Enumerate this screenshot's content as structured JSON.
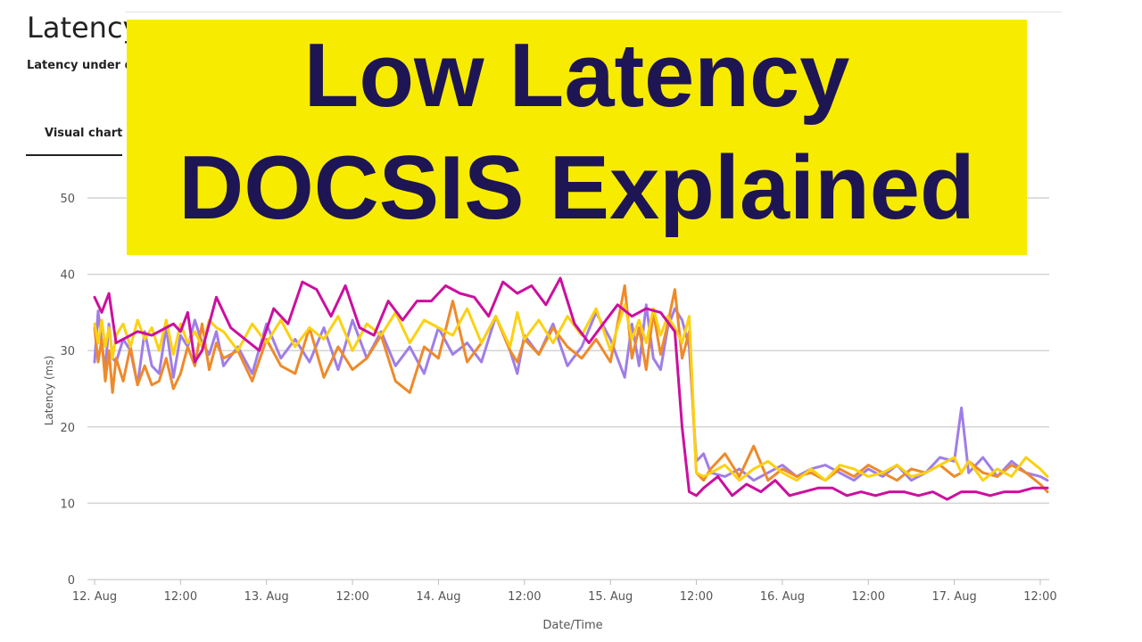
{
  "page": {
    "title": "Latency",
    "subtitle": "Latency under d",
    "tab_label": "Visual chart"
  },
  "banner": {
    "line1": "Low Latency",
    "line2": "DOCSIS Explained",
    "background": "#f7ec00",
    "text_color": "#1d1554"
  },
  "chart_data": {
    "type": "line",
    "xlabel": "Date/Time",
    "ylabel": "Latency (ms)",
    "ylim": [
      0,
      50
    ],
    "xlim": [
      "2023-08-12T00:00",
      "2023-08-17T13:00"
    ],
    "y_ticks": [
      0,
      10,
      20,
      30,
      40,
      50
    ],
    "x_ticks": [
      {
        "at": "2023-08-12T00:00",
        "label": "12. Aug"
      },
      {
        "at": "2023-08-12T12:00",
        "label": "12:00"
      },
      {
        "at": "2023-08-13T00:00",
        "label": "13. Aug"
      },
      {
        "at": "2023-08-13T12:00",
        "label": "12:00"
      },
      {
        "at": "2023-08-14T00:00",
        "label": "14. Aug"
      },
      {
        "at": "2023-08-14T12:00",
        "label": "12:00"
      },
      {
        "at": "2023-08-15T00:00",
        "label": "15. Aug"
      },
      {
        "at": "2023-08-15T12:00",
        "label": "12:00"
      },
      {
        "at": "2023-08-16T00:00",
        "label": "16. Aug"
      },
      {
        "at": "2023-08-16T12:00",
        "label": "12:00"
      },
      {
        "at": "2023-08-17T00:00",
        "label": "17. Aug"
      },
      {
        "at": "2023-08-17T12:00",
        "label": "12:00"
      }
    ],
    "grid": true,
    "series": [
      {
        "color": "#a07ee8",
        "x": [
          "2023-08-12T00:00",
          "2023-08-12T00:30",
          "2023-08-12T01:00",
          "2023-08-12T01:30",
          "2023-08-12T02:00",
          "2023-08-12T02:30",
          "2023-08-12T03:00",
          "2023-08-12T04:00",
          "2023-08-12T05:00",
          "2023-08-12T06:00",
          "2023-08-12T07:00",
          "2023-08-12T08:00",
          "2023-08-12T09:00",
          "2023-08-12T10:00",
          "2023-08-12T11:00",
          "2023-08-12T12:00",
          "2023-08-12T13:00",
          "2023-08-12T14:00",
          "2023-08-12T15:00",
          "2023-08-12T16:00",
          "2023-08-12T17:00",
          "2023-08-12T18:00",
          "2023-08-12T20:00",
          "2023-08-12T22:00",
          "2023-08-13T00:00",
          "2023-08-13T02:00",
          "2023-08-13T04:00",
          "2023-08-13T06:00",
          "2023-08-13T08:00",
          "2023-08-13T10:00",
          "2023-08-13T12:00",
          "2023-08-13T14:00",
          "2023-08-13T16:00",
          "2023-08-13T18:00",
          "2023-08-13T20:00",
          "2023-08-13T22:00",
          "2023-08-14T00:00",
          "2023-08-14T02:00",
          "2023-08-14T04:00",
          "2023-08-14T06:00",
          "2023-08-14T08:00",
          "2023-08-14T10:00",
          "2023-08-14T11:00",
          "2023-08-14T12:00",
          "2023-08-14T14:00",
          "2023-08-14T16:00",
          "2023-08-14T18:00",
          "2023-08-14T20:00",
          "2023-08-14T22:00",
          "2023-08-15T00:00",
          "2023-08-15T02:00",
          "2023-08-15T03:00",
          "2023-08-15T04:00",
          "2023-08-15T05:00",
          "2023-08-15T06:00",
          "2023-08-15T07:00",
          "2023-08-15T08:00",
          "2023-08-15T09:00",
          "2023-08-15T10:00",
          "2023-08-15T11:00",
          "2023-08-15T12:00",
          "2023-08-15T13:00",
          "2023-08-15T14:00",
          "2023-08-15T16:00",
          "2023-08-15T18:00",
          "2023-08-15T20:00",
          "2023-08-15T22:00",
          "2023-08-16T00:00",
          "2023-08-16T02:00",
          "2023-08-16T04:00",
          "2023-08-16T06:00",
          "2023-08-16T08:00",
          "2023-08-16T10:00",
          "2023-08-16T12:00",
          "2023-08-16T14:00",
          "2023-08-16T16:00",
          "2023-08-16T18:00",
          "2023-08-16T20:00",
          "2023-08-16T22:00",
          "2023-08-17T00:00",
          "2023-08-17T01:00",
          "2023-08-17T02:00",
          "2023-08-17T04:00",
          "2023-08-17T06:00",
          "2023-08-17T08:00",
          "2023-08-17T10:00",
          "2023-08-17T12:00",
          "2023-08-17T13:00"
        ],
        "y": [
          28.5,
          35.2,
          31.0,
          27.5,
          33.5,
          29.0,
          28.5,
          31.5,
          30.0,
          25.5,
          32.5,
          28.0,
          27.0,
          33.0,
          26.5,
          32.0,
          30.5,
          34.0,
          31.0,
          29.5,
          32.5,
          28.0,
          30.5,
          27.0,
          33.5,
          29.0,
          31.5,
          28.5,
          33.0,
          27.5,
          34.0,
          29.0,
          32.5,
          28.0,
          30.5,
          27.0,
          33.0,
          29.5,
          31.0,
          28.5,
          34.5,
          30.0,
          27.0,
          32.0,
          29.5,
          33.5,
          28.0,
          30.5,
          35.0,
          31.5,
          26.5,
          33.5,
          28.0,
          36.0,
          29.0,
          27.5,
          33.0,
          35.5,
          34.0,
          30.5,
          15.5,
          16.5,
          14.0,
          13.5,
          14.5,
          13.0,
          14.0,
          15.0,
          13.5,
          14.5,
          15.0,
          14.0,
          13.0,
          14.5,
          13.5,
          15.0,
          13.0,
          14.0,
          16.0,
          15.5,
          22.5,
          14.0,
          16.0,
          13.5,
          15.5,
          14.0,
          13.5,
          13.0
        ]
      },
      {
        "color": "#ee8a2a",
        "x": [
          "2023-08-12T00:00",
          "2023-08-12T00:30",
          "2023-08-12T01:00",
          "2023-08-12T01:30",
          "2023-08-12T02:00",
          "2023-08-12T02:30",
          "2023-08-12T03:00",
          "2023-08-12T04:00",
          "2023-08-12T05:00",
          "2023-08-12T06:00",
          "2023-08-12T07:00",
          "2023-08-12T08:00",
          "2023-08-12T09:00",
          "2023-08-12T10:00",
          "2023-08-12T11:00",
          "2023-08-12T12:00",
          "2023-08-12T13:00",
          "2023-08-12T14:00",
          "2023-08-12T15:00",
          "2023-08-12T16:00",
          "2023-08-12T17:00",
          "2023-08-12T18:00",
          "2023-08-12T20:00",
          "2023-08-12T22:00",
          "2023-08-13T00:00",
          "2023-08-13T02:00",
          "2023-08-13T04:00",
          "2023-08-13T06:00",
          "2023-08-13T08:00",
          "2023-08-13T10:00",
          "2023-08-13T12:00",
          "2023-08-13T14:00",
          "2023-08-13T16:00",
          "2023-08-13T18:00",
          "2023-08-13T20:00",
          "2023-08-13T22:00",
          "2023-08-14T00:00",
          "2023-08-14T02:00",
          "2023-08-14T04:00",
          "2023-08-14T06:00",
          "2023-08-14T08:00",
          "2023-08-14T10:00",
          "2023-08-14T11:00",
          "2023-08-14T12:00",
          "2023-08-14T14:00",
          "2023-08-14T16:00",
          "2023-08-14T18:00",
          "2023-08-14T20:00",
          "2023-08-14T22:00",
          "2023-08-15T00:00",
          "2023-08-15T02:00",
          "2023-08-15T03:00",
          "2023-08-15T04:00",
          "2023-08-15T05:00",
          "2023-08-15T06:00",
          "2023-08-15T07:00",
          "2023-08-15T08:00",
          "2023-08-15T09:00",
          "2023-08-15T10:00",
          "2023-08-15T11:00",
          "2023-08-15T12:00",
          "2023-08-15T13:00",
          "2023-08-15T14:00",
          "2023-08-15T16:00",
          "2023-08-15T18:00",
          "2023-08-15T20:00",
          "2023-08-15T22:00",
          "2023-08-16T00:00",
          "2023-08-16T02:00",
          "2023-08-16T04:00",
          "2023-08-16T06:00",
          "2023-08-16T08:00",
          "2023-08-16T10:00",
          "2023-08-16T12:00",
          "2023-08-16T14:00",
          "2023-08-16T16:00",
          "2023-08-16T18:00",
          "2023-08-16T20:00",
          "2023-08-16T22:00",
          "2023-08-17T00:00",
          "2023-08-17T01:00",
          "2023-08-17T02:00",
          "2023-08-17T04:00",
          "2023-08-17T06:00",
          "2023-08-17T08:00",
          "2023-08-17T10:00",
          "2023-08-17T12:00",
          "2023-08-17T13:00"
        ],
        "y": [
          33.0,
          28.5,
          31.5,
          26.0,
          30.0,
          24.5,
          29.0,
          26.0,
          30.5,
          25.5,
          28.0,
          25.5,
          26.0,
          29.0,
          25.0,
          27.0,
          30.5,
          28.0,
          33.5,
          27.5,
          31.0,
          29.0,
          30.0,
          26.0,
          31.5,
          28.0,
          27.0,
          33.0,
          26.5,
          30.5,
          27.5,
          29.0,
          32.0,
          26.0,
          24.5,
          30.5,
          29.0,
          36.5,
          28.5,
          31.0,
          34.5,
          30.0,
          28.5,
          31.5,
          29.5,
          33.0,
          30.5,
          29.0,
          31.5,
          28.5,
          38.5,
          29.0,
          33.0,
          27.5,
          35.0,
          29.5,
          33.5,
          38.0,
          29.0,
          32.5,
          14.0,
          13.0,
          14.5,
          16.5,
          13.5,
          17.5,
          13.0,
          14.5,
          13.5,
          14.0,
          13.0,
          14.5,
          13.5,
          15.0,
          14.0,
          13.0,
          14.5,
          14.0,
          15.0,
          13.5,
          14.0,
          15.5,
          14.0,
          13.5,
          15.0,
          14.0,
          12.5,
          11.5
        ]
      },
      {
        "color": "#fbd112",
        "x": [
          "2023-08-12T00:00",
          "2023-08-12T00:30",
          "2023-08-12T01:00",
          "2023-08-12T01:30",
          "2023-08-12T02:00",
          "2023-08-12T02:30",
          "2023-08-12T03:00",
          "2023-08-12T04:00",
          "2023-08-12T05:00",
          "2023-08-12T06:00",
          "2023-08-12T07:00",
          "2023-08-12T08:00",
          "2023-08-12T09:00",
          "2023-08-12T10:00",
          "2023-08-12T11:00",
          "2023-08-12T12:00",
          "2023-08-12T13:00",
          "2023-08-12T14:00",
          "2023-08-12T15:00",
          "2023-08-12T16:00",
          "2023-08-12T17:00",
          "2023-08-12T18:00",
          "2023-08-12T20:00",
          "2023-08-12T22:00",
          "2023-08-13T00:00",
          "2023-08-13T02:00",
          "2023-08-13T04:00",
          "2023-08-13T06:00",
          "2023-08-13T08:00",
          "2023-08-13T10:00",
          "2023-08-13T12:00",
          "2023-08-13T14:00",
          "2023-08-13T16:00",
          "2023-08-13T18:00",
          "2023-08-13T20:00",
          "2023-08-13T22:00",
          "2023-08-14T00:00",
          "2023-08-14T02:00",
          "2023-08-14T04:00",
          "2023-08-14T06:00",
          "2023-08-14T08:00",
          "2023-08-14T10:00",
          "2023-08-14T11:00",
          "2023-08-14T12:00",
          "2023-08-14T14:00",
          "2023-08-14T16:00",
          "2023-08-14T18:00",
          "2023-08-14T20:00",
          "2023-08-14T22:00",
          "2023-08-15T00:00",
          "2023-08-15T02:00",
          "2023-08-15T03:00",
          "2023-08-15T04:00",
          "2023-08-15T05:00",
          "2023-08-15T06:00",
          "2023-08-15T07:00",
          "2023-08-15T08:00",
          "2023-08-15T09:00",
          "2023-08-15T10:00",
          "2023-08-15T11:00",
          "2023-08-15T12:00",
          "2023-08-15T13:00",
          "2023-08-15T14:00",
          "2023-08-15T16:00",
          "2023-08-15T18:00",
          "2023-08-15T20:00",
          "2023-08-15T22:00",
          "2023-08-16T00:00",
          "2023-08-16T02:00",
          "2023-08-16T04:00",
          "2023-08-16T06:00",
          "2023-08-16T08:00",
          "2023-08-16T10:00",
          "2023-08-16T12:00",
          "2023-08-16T14:00",
          "2023-08-16T16:00",
          "2023-08-16T18:00",
          "2023-08-16T20:00",
          "2023-08-16T22:00",
          "2023-08-17T00:00",
          "2023-08-17T01:00",
          "2023-08-17T02:00",
          "2023-08-17T04:00",
          "2023-08-17T06:00",
          "2023-08-17T08:00",
          "2023-08-17T10:00",
          "2023-08-17T12:00",
          "2023-08-17T13:00"
        ],
        "y": [
          33.5,
          31.0,
          34.0,
          30.5,
          33.0,
          29.0,
          32.0,
          33.5,
          30.5,
          34.0,
          31.5,
          33.0,
          30.0,
          34.0,
          29.5,
          33.5,
          31.0,
          32.5,
          30.5,
          34.0,
          33.0,
          32.5,
          30.0,
          33.5,
          31.0,
          34.0,
          30.5,
          33.0,
          31.5,
          34.5,
          30.0,
          33.5,
          32.0,
          35.0,
          31.0,
          34.0,
          33.0,
          32.0,
          35.5,
          31.0,
          34.5,
          30.5,
          35.0,
          31.5,
          34.0,
          31.0,
          34.5,
          32.0,
          35.5,
          30.0,
          36.0,
          31.5,
          34.0,
          31.0,
          35.5,
          32.0,
          34.5,
          33.0,
          31.0,
          34.5,
          14.0,
          13.5,
          14.0,
          15.0,
          13.0,
          14.5,
          15.5,
          14.0,
          13.0,
          14.5,
          13.0,
          15.0,
          14.5,
          13.5,
          14.0,
          15.0,
          13.5,
          14.0,
          15.0,
          16.0,
          14.0,
          15.5,
          13.0,
          14.5,
          13.5,
          16.0,
          14.5,
          13.5
        ]
      },
      {
        "color": "#cc0f9e",
        "x": [
          "2023-08-12T00:00",
          "2023-08-12T01:00",
          "2023-08-12T02:00",
          "2023-08-12T03:00",
          "2023-08-12T04:00",
          "2023-08-12T06:00",
          "2023-08-12T08:00",
          "2023-08-12T10:00",
          "2023-08-12T11:00",
          "2023-08-12T12:00",
          "2023-08-12T13:00",
          "2023-08-12T14:00",
          "2023-08-12T15:00",
          "2023-08-12T17:00",
          "2023-08-12T19:00",
          "2023-08-12T21:00",
          "2023-08-12T23:00",
          "2023-08-13T01:00",
          "2023-08-13T03:00",
          "2023-08-13T05:00",
          "2023-08-13T07:00",
          "2023-08-13T09:00",
          "2023-08-13T11:00",
          "2023-08-13T13:00",
          "2023-08-13T15:00",
          "2023-08-13T17:00",
          "2023-08-13T19:00",
          "2023-08-13T21:00",
          "2023-08-13T23:00",
          "2023-08-14T01:00",
          "2023-08-14T03:00",
          "2023-08-14T05:00",
          "2023-08-14T07:00",
          "2023-08-14T09:00",
          "2023-08-14T11:00",
          "2023-08-14T13:00",
          "2023-08-14T15:00",
          "2023-08-14T17:00",
          "2023-08-14T19:00",
          "2023-08-14T21:00",
          "2023-08-14T23:00",
          "2023-08-15T01:00",
          "2023-08-15T03:00",
          "2023-08-15T05:00",
          "2023-08-15T07:00",
          "2023-08-15T09:00",
          "2023-08-15T10:00",
          "2023-08-15T11:00",
          "2023-08-15T12:00",
          "2023-08-15T13:00",
          "2023-08-15T15:00",
          "2023-08-15T17:00",
          "2023-08-15T19:00",
          "2023-08-15T21:00",
          "2023-08-15T23:00",
          "2023-08-16T01:00",
          "2023-08-16T03:00",
          "2023-08-16T05:00",
          "2023-08-16T07:00",
          "2023-08-16T09:00",
          "2023-08-16T11:00",
          "2023-08-16T13:00",
          "2023-08-16T15:00",
          "2023-08-16T17:00",
          "2023-08-16T19:00",
          "2023-08-16T21:00",
          "2023-08-16T23:00",
          "2023-08-17T01:00",
          "2023-08-17T03:00",
          "2023-08-17T05:00",
          "2023-08-17T07:00",
          "2023-08-17T09:00",
          "2023-08-17T11:00",
          "2023-08-17T13:00"
        ],
        "y": [
          37.0,
          35.0,
          37.5,
          31.0,
          31.5,
          32.5,
          32.0,
          33.0,
          33.5,
          32.5,
          35.0,
          28.5,
          30.0,
          37.0,
          33.0,
          31.5,
          30.0,
          35.5,
          33.5,
          39.0,
          38.0,
          34.5,
          38.5,
          33.0,
          32.0,
          36.5,
          34.0,
          36.5,
          36.5,
          38.5,
          37.5,
          37.0,
          34.5,
          39.0,
          37.5,
          38.5,
          36.0,
          39.5,
          33.5,
          31.0,
          33.5,
          36.0,
          34.5,
          35.5,
          35.0,
          32.5,
          20.0,
          11.5,
          11.0,
          12.0,
          13.5,
          11.0,
          12.5,
          11.5,
          13.0,
          11.0,
          11.5,
          12.0,
          12.0,
          11.0,
          11.5,
          11.0,
          11.5,
          11.5,
          11.0,
          11.5,
          10.5,
          11.5,
          11.5,
          11.0,
          11.5,
          11.5,
          12.0,
          12.0
        ]
      }
    ]
  }
}
